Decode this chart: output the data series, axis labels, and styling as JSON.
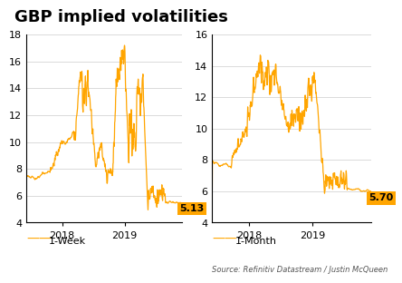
{
  "title": "GBP implied volatilities",
  "title_fontsize": 13,
  "title_fontweight": "bold",
  "line_color": "#FFA500",
  "background_color": "#ffffff",
  "source_text": "Source: Refinitiv Datastream / Justin McQueen",
  "left_label": "1-Week",
  "right_label": "1-Month",
  "left_end_value": "5.13",
  "right_end_value": "5.70",
  "left_ylim": [
    4,
    18
  ],
  "right_ylim": [
    4,
    16
  ],
  "left_yticks": [
    4,
    6,
    8,
    10,
    12,
    14,
    16,
    18
  ],
  "right_yticks": [
    4,
    6,
    8,
    10,
    12,
    14,
    16
  ],
  "annotation_bg": "#FFA500",
  "annotation_fc": "#000000"
}
